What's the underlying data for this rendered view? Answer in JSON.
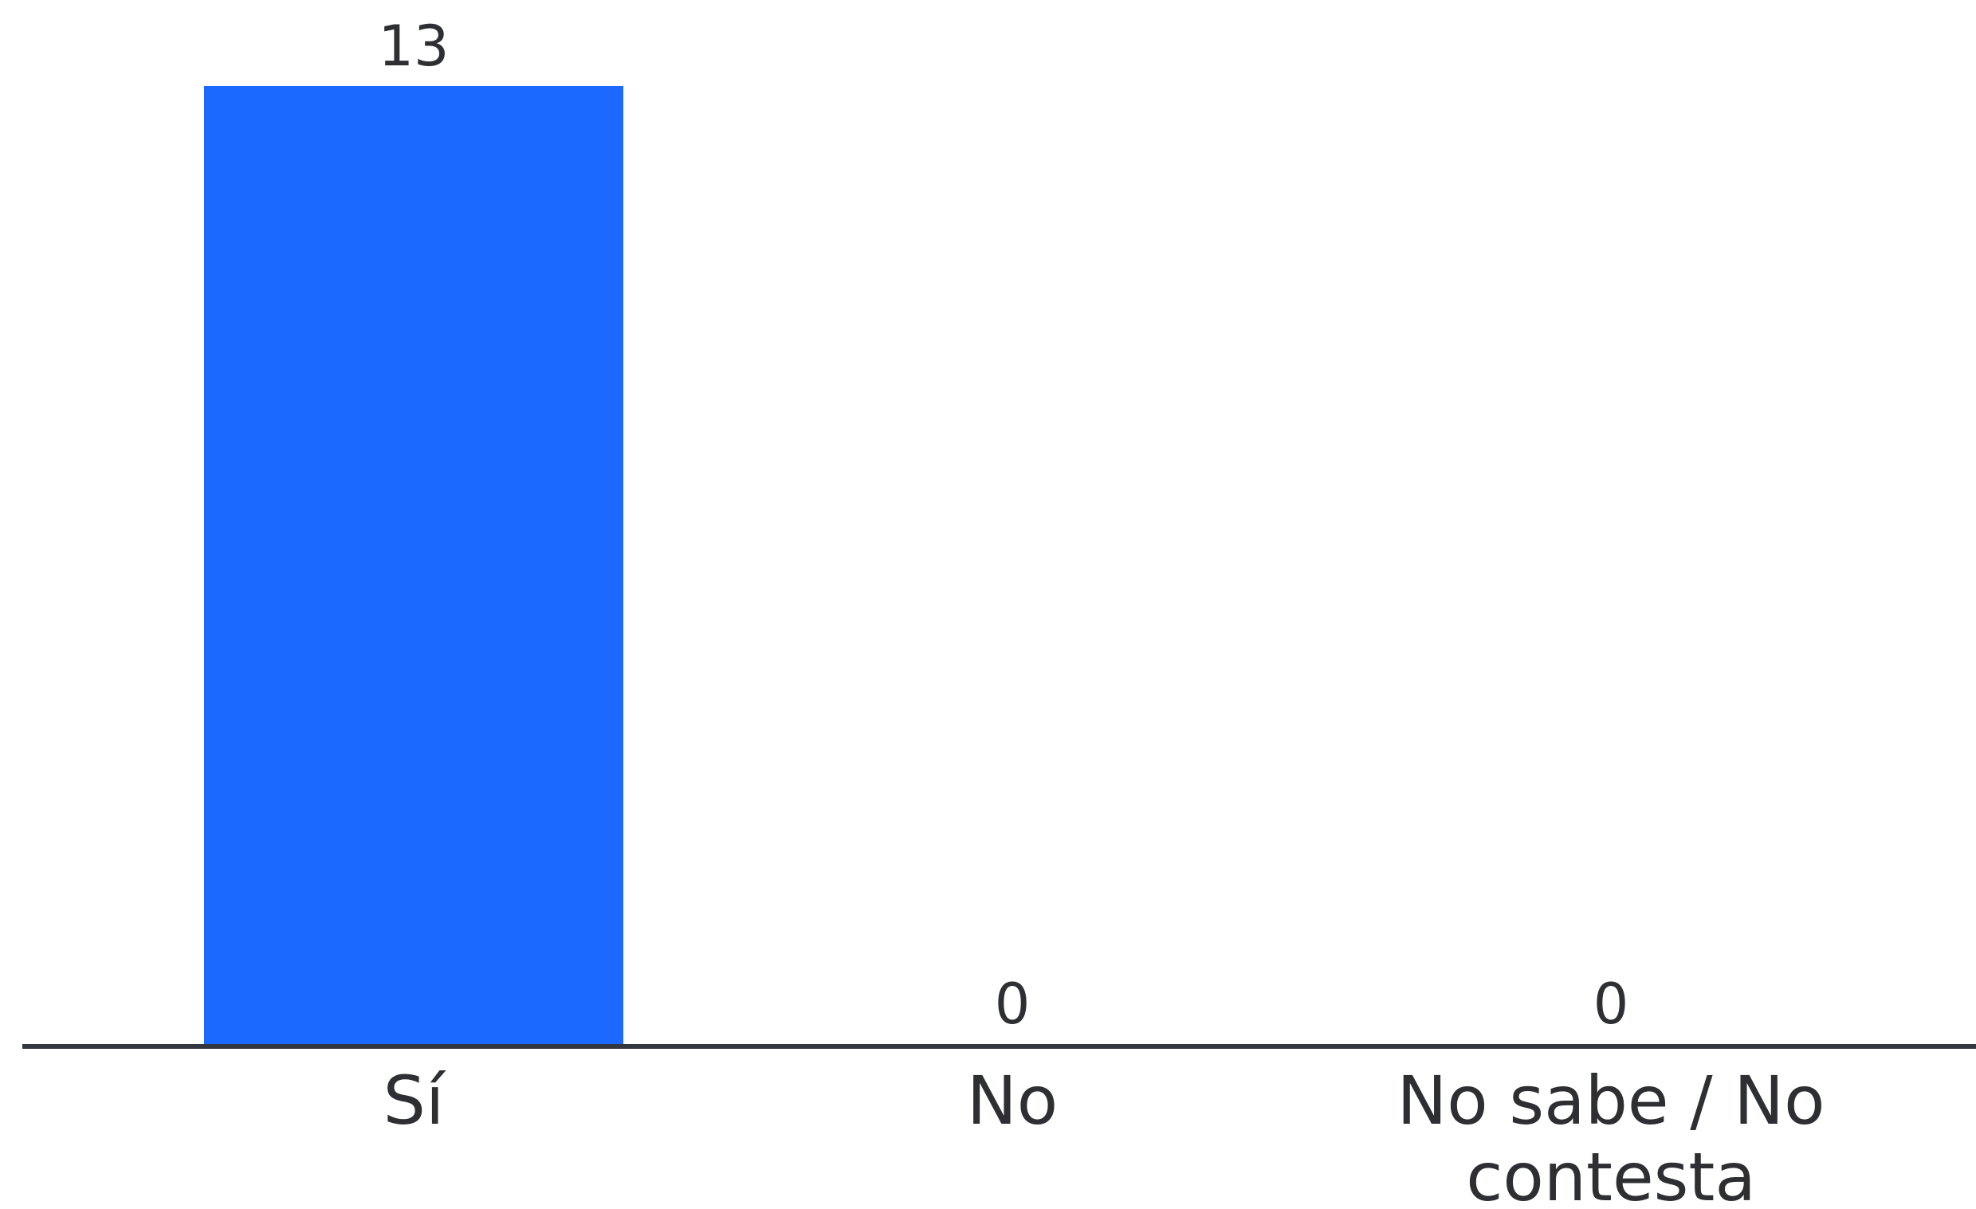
{
  "chart_data": {
    "type": "bar",
    "categories": [
      "Sí",
      "No",
      "No sabe / No contesta"
    ],
    "category_lines": [
      [
        "Sí"
      ],
      [
        "No"
      ],
      [
        "No sabe / No",
        "contesta"
      ]
    ],
    "values": [
      13,
      0,
      0
    ],
    "data_labels": [
      "13",
      "0",
      "0"
    ],
    "title": "",
    "xlabel": "",
    "ylabel": "",
    "ylim": [
      0,
      13
    ],
    "grid": false,
    "legend": "none",
    "bar_color": "#1c69ff",
    "axis_color": "#333740",
    "text_color": "#2d2f33"
  }
}
